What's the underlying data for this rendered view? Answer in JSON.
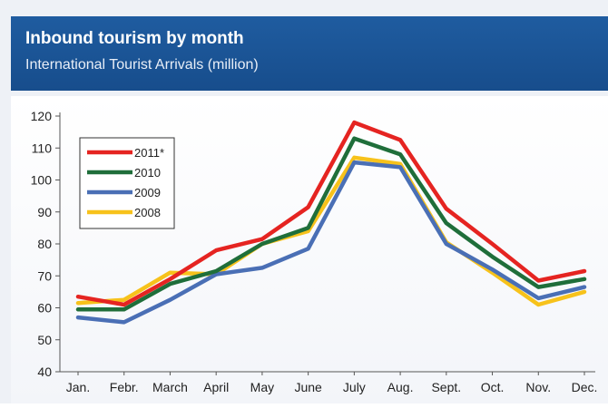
{
  "header": {
    "title": "Inbound tourism by month",
    "subtitle": "International Tourist Arrivals  (million)"
  },
  "chart_data": {
    "type": "line",
    "title": "Inbound tourism by month",
    "subtitle": "International Tourist Arrivals  (million)",
    "xlabel": "",
    "ylabel": "",
    "categories": [
      "Jan.",
      "Febr.",
      "March",
      "April",
      "May",
      "June",
      "July",
      "Aug.",
      "Sept.",
      "Oct.",
      "Nov.",
      "Dec."
    ],
    "ylim": [
      40,
      120
    ],
    "yticks": [
      40,
      50,
      60,
      70,
      80,
      90,
      100,
      110,
      120
    ],
    "legend_position": "top-left",
    "grid": false,
    "series": [
      {
        "name": "2011*",
        "color": "#e52421",
        "values": [
          63.5,
          61,
          69,
          78,
          81.5,
          91.5,
          118,
          112.5,
          91,
          80,
          68.5,
          71.5
        ]
      },
      {
        "name": "2010",
        "color": "#1f6e3a",
        "values": [
          59.5,
          59.5,
          67.5,
          71.5,
          80,
          85,
          113,
          108,
          86.5,
          76,
          66.5,
          69
        ]
      },
      {
        "name": "2009",
        "color": "#4a6fb5",
        "values": [
          57,
          55.5,
          62.5,
          70.5,
          72.5,
          78.5,
          105.5,
          104,
          80,
          72,
          63,
          66.5
        ]
      },
      {
        "name": "2008",
        "color": "#f7c21b",
        "values": [
          61.5,
          62.5,
          71,
          70.5,
          80,
          84,
          107,
          105,
          80.5,
          71,
          61,
          65
        ]
      }
    ]
  }
}
